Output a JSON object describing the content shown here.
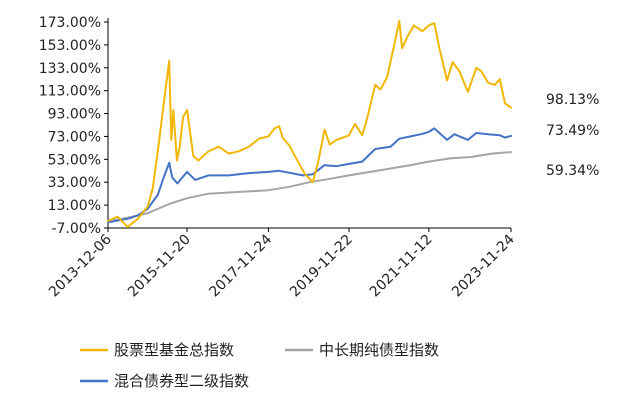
{
  "chart_data": {
    "type": "line",
    "title": "",
    "xlabel": "",
    "ylabel": "",
    "x_tick_labels": [
      "2013-12-06",
      "2015-11-20",
      "2017-11-24",
      "2019-11-22",
      "2021-11-12",
      "2023-11-24"
    ],
    "y_tick_labels": [
      "-7.00%",
      "13.00%",
      "33.00%",
      "53.00%",
      "73.00%",
      "93.00%",
      "113.00%",
      "133.00%",
      "153.00%",
      "173.00%"
    ],
    "ylim": [
      -7,
      173
    ],
    "xlim": [
      "2013-12-06",
      "2023-11-24"
    ],
    "grid": false,
    "legend_position": "bottom",
    "series": [
      {
        "name": "股票型基金总指数",
        "color": "#F2B705",
        "end_label": "98.13%",
        "points": [
          [
            "2013-12-06",
            -1
          ],
          [
            "2014-03-01",
            3
          ],
          [
            "2014-06-01",
            -6
          ],
          [
            "2014-09-01",
            1
          ],
          [
            "2014-12-01",
            12
          ],
          [
            "2015-01-15",
            28
          ],
          [
            "2015-03-01",
            60
          ],
          [
            "2015-04-15",
            95
          ],
          [
            "2015-05-15",
            118
          ],
          [
            "2015-06-12",
            139
          ],
          [
            "2015-07-01",
            70
          ],
          [
            "2015-07-20",
            96
          ],
          [
            "2015-08-20",
            52
          ],
          [
            "2015-09-15",
            64
          ],
          [
            "2015-10-15",
            90
          ],
          [
            "2015-11-20",
            96
          ],
          [
            "2016-01-15",
            56
          ],
          [
            "2016-03-01",
            52
          ],
          [
            "2016-06-01",
            60
          ],
          [
            "2016-09-01",
            64
          ],
          [
            "2016-12-01",
            58
          ],
          [
            "2017-03-01",
            60
          ],
          [
            "2017-06-01",
            64
          ],
          [
            "2017-09-01",
            71
          ],
          [
            "2017-11-24",
            73
          ],
          [
            "2018-01-20",
            80
          ],
          [
            "2018-03-01",
            82
          ],
          [
            "2018-04-01",
            72
          ],
          [
            "2018-06-01",
            65
          ],
          [
            "2018-08-01",
            54
          ],
          [
            "2018-10-20",
            40
          ],
          [
            "2018-12-30",
            33
          ],
          [
            "2019-02-15",
            50
          ],
          [
            "2019-04-15",
            79
          ],
          [
            "2019-06-01",
            66
          ],
          [
            "2019-08-01",
            70
          ],
          [
            "2019-11-22",
            74
          ],
          [
            "2020-01-15",
            84
          ],
          [
            "2020-03-20",
            74
          ],
          [
            "2020-05-01",
            88
          ],
          [
            "2020-07-15",
            118
          ],
          [
            "2020-09-01",
            114
          ],
          [
            "2020-11-01",
            125
          ],
          [
            "2021-01-01",
            152
          ],
          [
            "2021-02-18",
            174
          ],
          [
            "2021-03-15",
            150
          ],
          [
            "2021-05-01",
            160
          ],
          [
            "2021-07-01",
            170
          ],
          [
            "2021-09-15",
            165
          ],
          [
            "2021-11-12",
            170
          ],
          [
            "2021-12-31",
            172
          ],
          [
            "2022-02-15",
            150
          ],
          [
            "2022-04-26",
            122
          ],
          [
            "2022-06-15",
            138
          ],
          [
            "2022-08-15",
            130
          ],
          [
            "2022-10-31",
            112
          ],
          [
            "2023-01-15",
            133
          ],
          [
            "2023-03-01",
            130
          ],
          [
            "2023-05-01",
            120
          ],
          [
            "2023-07-01",
            118
          ],
          [
            "2023-08-15",
            123
          ],
          [
            "2023-10-01",
            102
          ],
          [
            "2023-11-24",
            98.13
          ]
        ]
      },
      {
        "name": "中长期纯债型指数",
        "color": "#A5A5A5",
        "end_label": "59.34%",
        "points": [
          [
            "2013-12-06",
            -1
          ],
          [
            "2014-06-01",
            2
          ],
          [
            "2014-12-01",
            6
          ],
          [
            "2015-06-12",
            14
          ],
          [
            "2015-11-20",
            19
          ],
          [
            "2016-06-01",
            23
          ],
          [
            "2016-12-01",
            24
          ],
          [
            "2017-06-01",
            25
          ],
          [
            "2017-11-24",
            26
          ],
          [
            "2018-06-01",
            29
          ],
          [
            "2018-12-01",
            33
          ],
          [
            "2019-06-01",
            36
          ],
          [
            "2019-11-22",
            39
          ],
          [
            "2020-06-01",
            42
          ],
          [
            "2020-12-01",
            45
          ],
          [
            "2021-06-01",
            48
          ],
          [
            "2021-11-12",
            51
          ],
          [
            "2022-06-01",
            54
          ],
          [
            "2022-12-01",
            55
          ],
          [
            "2023-06-01",
            58
          ],
          [
            "2023-11-24",
            59.34
          ]
        ]
      },
      {
        "name": "混合债券型二级指数",
        "color": "#4472C4",
        "end_label": "73.49%",
        "points": [
          [
            "2013-12-06",
            -2
          ],
          [
            "2014-06-01",
            1
          ],
          [
            "2014-09-01",
            4
          ],
          [
            "2014-12-01",
            10
          ],
          [
            "2015-03-01",
            22
          ],
          [
            "2015-04-15",
            35
          ],
          [
            "2015-06-12",
            50
          ],
          [
            "2015-07-10",
            37
          ],
          [
            "2015-08-25",
            32
          ],
          [
            "2015-11-20",
            42
          ],
          [
            "2016-02-01",
            35
          ],
          [
            "2016-06-01",
            39
          ],
          [
            "2016-12-01",
            39
          ],
          [
            "2017-06-01",
            41
          ],
          [
            "2017-11-24",
            42
          ],
          [
            "2018-03-01",
            43
          ],
          [
            "2018-10-01",
            39
          ],
          [
            "2018-12-30",
            40
          ],
          [
            "2019-04-15",
            48
          ],
          [
            "2019-08-01",
            47
          ],
          [
            "2019-11-22",
            49
          ],
          [
            "2020-03-20",
            51
          ],
          [
            "2020-07-15",
            62
          ],
          [
            "2020-12-01",
            64
          ],
          [
            "2021-02-18",
            71
          ],
          [
            "2021-06-01",
            73
          ],
          [
            "2021-09-01",
            75
          ],
          [
            "2021-11-12",
            77
          ],
          [
            "2021-12-31",
            80
          ],
          [
            "2022-04-26",
            70
          ],
          [
            "2022-07-01",
            75
          ],
          [
            "2022-10-31",
            70
          ],
          [
            "2023-01-15",
            76
          ],
          [
            "2023-05-01",
            75
          ],
          [
            "2023-08-15",
            74
          ],
          [
            "2023-10-01",
            72
          ],
          [
            "2023-11-24",
            73.49
          ]
        ]
      }
    ]
  }
}
